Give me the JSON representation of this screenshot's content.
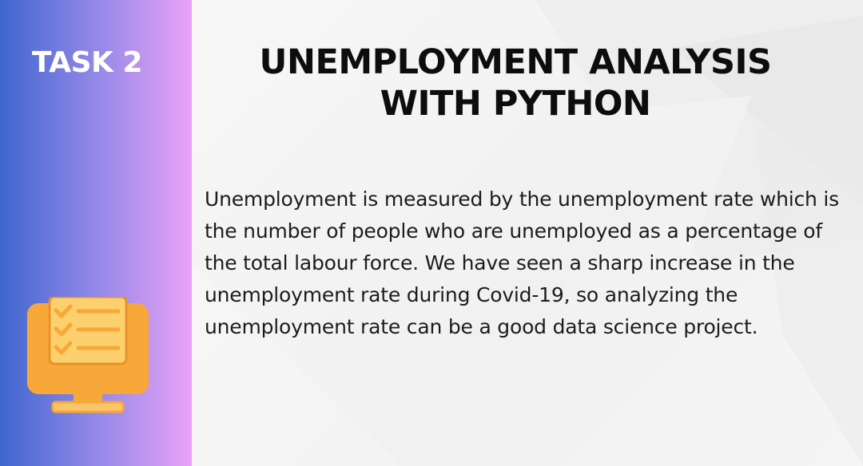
{
  "sidebar": {
    "task_label": "TASK 2",
    "icon": "monitor-checklist-icon",
    "gradient_colors": [
      "#3f66cf",
      "#8b85e6",
      "#eaa2f7"
    ]
  },
  "main": {
    "title_line1": "UNEMPLOYMENT ANALYSIS",
    "title_line2": "WITH PYTHON",
    "description": "Unemployment is measured by the unemployment rate which is the number of people who are unemployed as a percentage of the total labour force. We have seen a sharp increase in the unemployment rate during Covid-19, so analyzing the unemployment rate can be a good data science project."
  },
  "colors": {
    "icon_orange": "#f8a839",
    "icon_screen": "#fcd06d",
    "text_dark": "#0d0d0d"
  }
}
